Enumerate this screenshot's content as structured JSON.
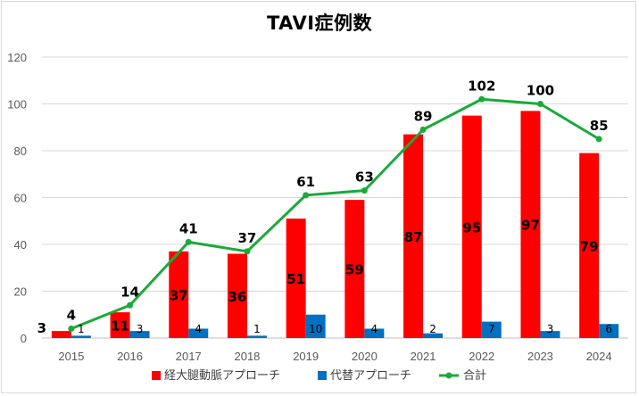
{
  "chart_data": {
    "type": "bar",
    "title": "TAVI症例数",
    "categories": [
      "2015",
      "2016",
      "2017",
      "2018",
      "2019",
      "2020",
      "2021",
      "2022",
      "2023",
      "2024"
    ],
    "ylim": [
      0,
      120
    ],
    "yticks": [
      0,
      20,
      40,
      60,
      80,
      100,
      120
    ],
    "grid": true,
    "legend_position": "bottom",
    "series": [
      {
        "name": "経大腿動脈アプローチ",
        "kind": "bar",
        "color": "#ff0000",
        "values": [
          3,
          11,
          37,
          36,
          51,
          59,
          87,
          95,
          97,
          79
        ]
      },
      {
        "name": "代替アプローチ",
        "kind": "bar",
        "color": "#0070c0",
        "values": [
          1,
          3,
          4,
          1,
          10,
          4,
          2,
          7,
          3,
          6
        ]
      },
      {
        "name": "合計",
        "kind": "line",
        "color": "#1aaa3a",
        "values": [
          4,
          14,
          41,
          37,
          61,
          63,
          89,
          102,
          100,
          85
        ]
      }
    ]
  }
}
